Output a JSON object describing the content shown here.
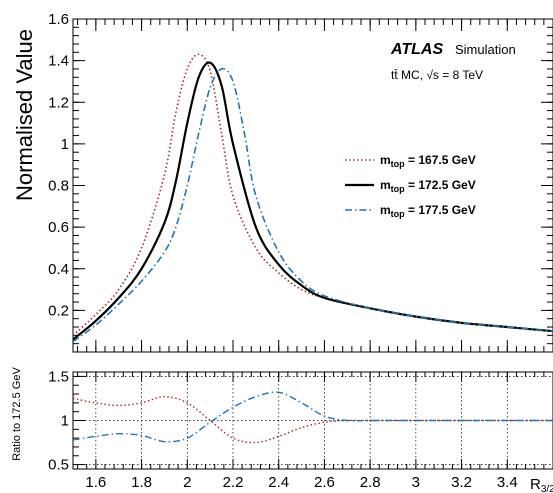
{
  "chart_data": [
    {
      "type": "line",
      "panel": "main",
      "ylabel": "Normalised Value",
      "xlim": [
        1.5,
        3.6
      ],
      "ylim": [
        0,
        1.6
      ],
      "yticks": [
        "0.2",
        "0.4",
        "0.6",
        "0.8",
        "1",
        "1.2",
        "1.4",
        "1.6"
      ],
      "annotations": {
        "atlas": "ATLAS",
        "simulation": "Simulation",
        "process": "tt̄ MC, √s = 8 TeV"
      },
      "legend_position": "right",
      "series": [
        {
          "name": "m_top = 167.5 GeV",
          "label_main": "m",
          "label_sub": "top",
          "label_rest": " = 167.5 GeV",
          "color": "#a52a2a",
          "style": "dotted",
          "x": [
            1.5,
            1.6,
            1.7,
            1.8,
            1.9,
            1.95,
            2.0,
            2.05,
            2.1,
            2.15,
            2.2,
            2.3,
            2.4,
            2.5,
            2.6,
            2.8,
            3.0,
            3.2,
            3.4,
            3.6
          ],
          "y": [
            0.08,
            0.18,
            0.3,
            0.5,
            0.85,
            1.15,
            1.36,
            1.43,
            1.35,
            1.05,
            0.75,
            0.5,
            0.38,
            0.3,
            0.26,
            0.21,
            0.17,
            0.14,
            0.12,
            0.1
          ]
        },
        {
          "name": "m_top = 172.5 GeV",
          "label_main": "m",
          "label_sub": "top",
          "label_rest": " = 172.5 GeV",
          "color": "#000000",
          "style": "solid",
          "x": [
            1.5,
            1.6,
            1.7,
            1.8,
            1.9,
            1.95,
            2.0,
            2.05,
            2.1,
            2.15,
            2.2,
            2.3,
            2.4,
            2.5,
            2.6,
            2.8,
            3.0,
            3.2,
            3.4,
            3.6
          ],
          "y": [
            0.06,
            0.15,
            0.26,
            0.4,
            0.62,
            0.82,
            1.1,
            1.32,
            1.39,
            1.28,
            1.0,
            0.6,
            0.42,
            0.32,
            0.26,
            0.21,
            0.17,
            0.14,
            0.12,
            0.1
          ]
        },
        {
          "name": "m_top = 177.5 GeV",
          "label_main": "m",
          "label_sub": "top",
          "label_rest": " = 177.5 GeV",
          "color": "#1f77b4",
          "style": "dashdot",
          "x": [
            1.5,
            1.6,
            1.7,
            1.8,
            1.9,
            1.95,
            2.0,
            2.05,
            2.1,
            2.15,
            2.2,
            2.25,
            2.3,
            2.4,
            2.5,
            2.6,
            2.8,
            3.0,
            3.2,
            3.4,
            3.6
          ],
          "y": [
            0.05,
            0.13,
            0.23,
            0.34,
            0.48,
            0.6,
            0.8,
            1.05,
            1.27,
            1.36,
            1.3,
            1.05,
            0.75,
            0.48,
            0.34,
            0.27,
            0.21,
            0.17,
            0.14,
            0.12,
            0.1
          ]
        }
      ]
    },
    {
      "type": "line",
      "panel": "ratio",
      "ylabel": "Ratio to 172.5 GeV",
      "xlabel_main": "R",
      "xlabel_sub": "3/2",
      "xlim": [
        1.5,
        3.6
      ],
      "ylim": [
        0.45,
        1.55
      ],
      "yticks": [
        "0.5",
        "1",
        "1.5"
      ],
      "xticks": [
        "1.6",
        "1.8",
        "2",
        "2.2",
        "2.4",
        "2.6",
        "2.8",
        "3",
        "3.2",
        "3.4"
      ],
      "series": [
        {
          "name": "167.5 / 172.5",
          "color": "#a52a2a",
          "style": "dotted",
          "x": [
            1.5,
            1.6,
            1.7,
            1.8,
            1.9,
            2.0,
            2.1,
            2.2,
            2.3,
            2.4,
            2.5,
            2.6,
            2.7,
            2.8,
            3.0,
            3.2,
            3.4,
            3.6
          ],
          "y": [
            1.25,
            1.2,
            1.17,
            1.2,
            1.27,
            1.2,
            1.0,
            0.8,
            0.75,
            0.82,
            0.92,
            0.98,
            1.0,
            1.0,
            1.0,
            1.0,
            1.0,
            1.0
          ]
        },
        {
          "name": "177.5 / 172.5",
          "color": "#1f77b4",
          "style": "dashdot",
          "x": [
            1.5,
            1.6,
            1.7,
            1.8,
            1.9,
            2.0,
            2.1,
            2.2,
            2.3,
            2.4,
            2.5,
            2.6,
            2.7,
            2.8,
            3.0,
            3.2,
            3.4,
            3.6
          ],
          "y": [
            0.78,
            0.82,
            0.85,
            0.83,
            0.76,
            0.8,
            0.98,
            1.15,
            1.27,
            1.32,
            1.2,
            1.05,
            1.0,
            1.0,
            1.0,
            1.0,
            1.0,
            1.0
          ]
        }
      ]
    }
  ]
}
